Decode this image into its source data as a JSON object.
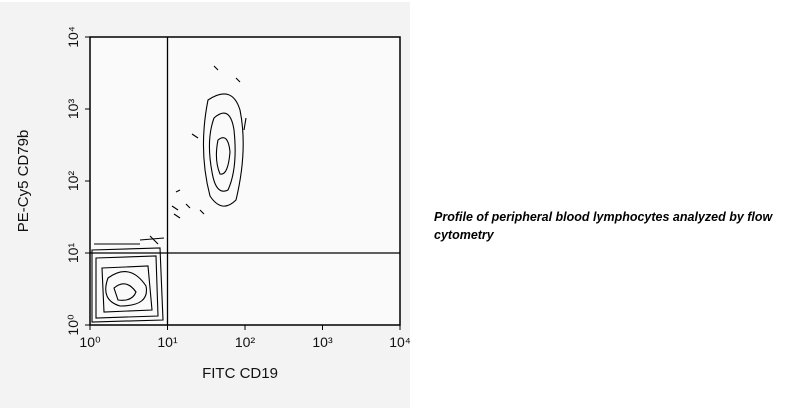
{
  "chart_data": {
    "type": "contour",
    "x_label": "FITC CD19",
    "y_label": "PE-Cy5 CD79b",
    "caption": "Profile of peripheral blood lymphocytes analyzed by flow cytometry",
    "xscale": "log",
    "yscale": "log",
    "xlim": [
      1,
      10000
    ],
    "ylim": [
      1,
      10000
    ],
    "xticks": [
      {
        "value": 1,
        "label": "10⁰"
      },
      {
        "value": 10,
        "label": "10¹"
      },
      {
        "value": 100,
        "label": "10²"
      },
      {
        "value": 1000,
        "label": "10³"
      },
      {
        "value": 10000,
        "label": "10⁴"
      }
    ],
    "yticks": [
      {
        "value": 1,
        "label": "10⁰"
      },
      {
        "value": 10,
        "label": "10¹"
      },
      {
        "value": 100,
        "label": "10²"
      },
      {
        "value": 1000,
        "label": "10³"
      },
      {
        "value": 10000,
        "label": "10⁴"
      }
    ],
    "gates": {
      "x": 10,
      "y": 10
    },
    "color": "#000000"
  }
}
